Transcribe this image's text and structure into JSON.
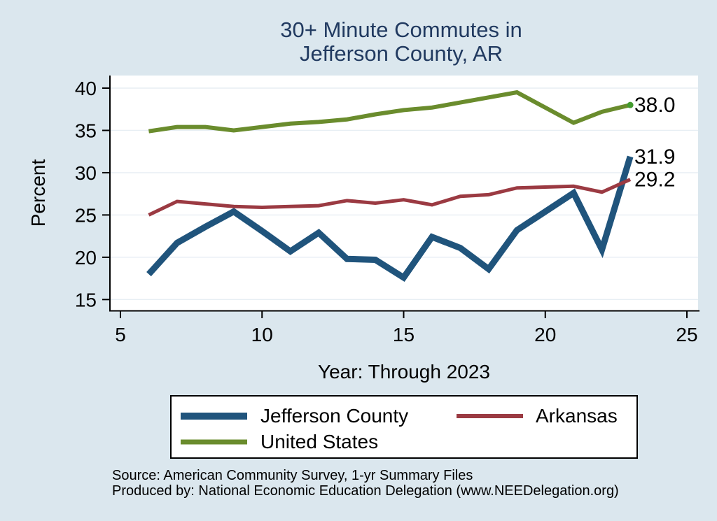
{
  "header": {
    "title_line1": "30+ Minute Commutes in",
    "title_line2": "Jefferson County, AR"
  },
  "chart_data": {
    "type": "line",
    "title": "30+ Minute Commutes in Jefferson County, AR",
    "xlabel": "Year: Through 2023",
    "ylabel": "Percent",
    "x_ticks": [
      5,
      10,
      15,
      20,
      25
    ],
    "y_ticks": [
      15,
      20,
      25,
      30,
      35,
      40
    ],
    "xlim": [
      4.6,
      25.4
    ],
    "ylim": [
      13.7,
      41.5
    ],
    "grid": "horizontal-only",
    "legend_position": "bottom",
    "x": [
      6,
      7,
      8,
      9,
      10,
      11,
      12,
      13,
      14,
      15,
      16,
      17,
      18,
      19,
      21,
      22,
      23
    ],
    "series": [
      {
        "name": "Jefferson County",
        "color": "#20547c",
        "line_width": 9,
        "values": [
          18.0,
          21.7,
          23.6,
          25.4,
          23.1,
          20.7,
          22.9,
          19.8,
          19.7,
          17.6,
          22.4,
          21.1,
          18.6,
          23.2,
          27.6,
          20.9,
          31.9
        ],
        "end_label": "31.9"
      },
      {
        "name": "Arkansas",
        "color": "#9b3a42",
        "line_width": 5,
        "values": [
          25.0,
          26.6,
          26.3,
          26.0,
          25.9,
          26.0,
          26.1,
          26.7,
          26.4,
          26.8,
          26.2,
          27.2,
          27.4,
          28.2,
          28.4,
          27.7,
          29.2
        ],
        "end_label": "29.2"
      },
      {
        "name": "United States",
        "color": "#6a8c2d",
        "line_width": 6,
        "values": [
          34.9,
          35.4,
          35.4,
          35.0,
          35.4,
          35.8,
          36.0,
          36.3,
          36.9,
          37.4,
          37.7,
          38.3,
          38.9,
          39.5,
          35.9,
          37.2,
          38.0
        ],
        "end_label": "38.0",
        "end_marker_color": "#429b2f"
      }
    ]
  },
  "footer": {
    "line1": "Source: American Community Survey, 1-yr Summary Files",
    "line2": "Produced by: National Economic Education Delegation (www.NEEDelegation.org)"
  },
  "colors": {
    "background": "#dbe7ee",
    "plot_background": "#ffffff",
    "gridline": "#e7eef4",
    "axis": "#000000",
    "title": "#213a60",
    "text": "#000000",
    "legend_border": "#000000"
  }
}
